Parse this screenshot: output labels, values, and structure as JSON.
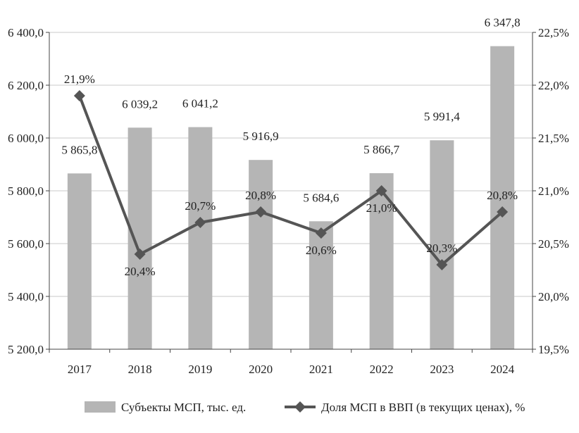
{
  "chart_data": {
    "type": "bar+line",
    "categories": [
      "2017",
      "2018",
      "2019",
      "2020",
      "2021",
      "2022",
      "2023",
      "2024"
    ],
    "series": [
      {
        "name": "Субъекты МСП, тыс. ед.",
        "type": "bar",
        "axis": "left",
        "values": [
          5865.8,
          6039.2,
          6041.2,
          5916.9,
          5684.6,
          5866.7,
          5991.4,
          6347.8
        ],
        "labels": [
          "5 865,8",
          "6 039,2",
          "6 041,2",
          "5 916,9",
          "5 684,6",
          "5 866,7",
          "5 991,4",
          "6 347,8"
        ]
      },
      {
        "name": "Доля МСП в ВВП  (в текущих ценах), %",
        "type": "line",
        "axis": "right",
        "values": [
          21.9,
          20.4,
          20.7,
          20.8,
          20.6,
          21.0,
          20.3,
          20.8
        ],
        "labels": [
          "21,9%",
          "20,4%",
          "20,7%",
          "20,8%",
          "20,6%",
          "21,0%",
          "20,3%",
          "20,8%"
        ]
      }
    ],
    "y_left": {
      "ylim": [
        5200,
        6400
      ],
      "ticks": [
        5200,
        5400,
        5600,
        5800,
        6000,
        6200,
        6400
      ],
      "tick_labels": [
        "5 200,0",
        "5 400,0",
        "5 600,0",
        "5 800,0",
        "6 000,0",
        "6 200,0",
        "6 400,0"
      ]
    },
    "y_right": {
      "ylim": [
        19.5,
        22.5
      ],
      "ticks": [
        19.5,
        20.0,
        20.5,
        21.0,
        21.5,
        22.0,
        22.5
      ],
      "tick_labels": [
        "19,5%",
        "20,0%",
        "20,5%",
        "21,0%",
        "21,5%",
        "22,0%",
        "22,5%"
      ]
    },
    "grid": "horizontal",
    "legend_position": "bottom",
    "colors": {
      "bar": "#b5b5b5",
      "line": "#555555",
      "grid": "#c8c8c8",
      "axis": "#444444"
    }
  }
}
